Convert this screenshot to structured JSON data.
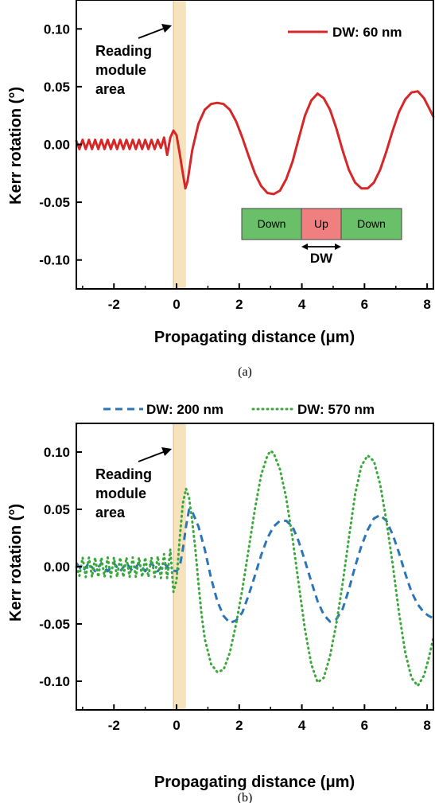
{
  "chart_data": [
    {
      "type": "line",
      "panel": "(a)",
      "caption": "(a)",
      "xlabel": "Propagating distance (μm)",
      "ylabel": "Kerr rotation (°)",
      "xlim": [
        -3.2,
        8.2
      ],
      "ylim": [
        -0.125,
        0.125
      ],
      "xticks": [
        "-2",
        "0",
        "2",
        "4",
        "6",
        "8"
      ],
      "yticks": [
        "0.10",
        "0.05",
        "0.00",
        "-0.05",
        "-0.10"
      ],
      "legend_position": "top-right",
      "highlight_region": [
        -0.1,
        0.3
      ],
      "highlight_color": "#f5deb3",
      "annotation_lines": [
        "Reading",
        "module",
        "area"
      ],
      "inset": {
        "segments": [
          "Down",
          "Up",
          "Down"
        ],
        "arrow_label": "DW",
        "colors": [
          "#6abf69",
          "#f08080",
          "#6abf69"
        ]
      },
      "series": [
        {
          "name": "DW: 60 nm",
          "color": "#d62728",
          "dash": "solid",
          "points": [
            [
              -3.2,
              0.003
            ],
            [
              -3.1,
              -0.004
            ],
            [
              -3.0,
              0.004
            ],
            [
              -2.9,
              -0.004
            ],
            [
              -2.8,
              0.004
            ],
            [
              -2.7,
              -0.004
            ],
            [
              -2.6,
              0.004
            ],
            [
              -2.5,
              -0.004
            ],
            [
              -2.4,
              0.004
            ],
            [
              -2.3,
              -0.004
            ],
            [
              -2.2,
              0.004
            ],
            [
              -2.1,
              -0.004
            ],
            [
              -2.0,
              0.004
            ],
            [
              -1.9,
              -0.004
            ],
            [
              -1.8,
              0.004
            ],
            [
              -1.7,
              -0.004
            ],
            [
              -1.6,
              0.004
            ],
            [
              -1.5,
              -0.004
            ],
            [
              -1.4,
              0.004
            ],
            [
              -1.3,
              -0.004
            ],
            [
              -1.2,
              0.004
            ],
            [
              -1.1,
              -0.004
            ],
            [
              -1.0,
              0.004
            ],
            [
              -0.9,
              -0.004
            ],
            [
              -0.8,
              0.004
            ],
            [
              -0.7,
              -0.004
            ],
            [
              -0.6,
              0.004
            ],
            [
              -0.5,
              -0.003
            ],
            [
              -0.4,
              0.006
            ],
            [
              -0.3,
              -0.009
            ],
            [
              -0.2,
              0.006
            ],
            [
              -0.1,
              0.012
            ],
            [
              0.0,
              0.008
            ],
            [
              0.1,
              -0.008
            ],
            [
              0.2,
              -0.025
            ],
            [
              0.28,
              -0.038
            ],
            [
              0.35,
              -0.032
            ],
            [
              0.5,
              -0.005
            ],
            [
              0.7,
              0.018
            ],
            [
              0.9,
              0.03
            ],
            [
              1.1,
              0.035
            ],
            [
              1.3,
              0.036
            ],
            [
              1.5,
              0.035
            ],
            [
              1.7,
              0.03
            ],
            [
              1.9,
              0.02
            ],
            [
              2.1,
              0.006
            ],
            [
              2.3,
              -0.01
            ],
            [
              2.5,
              -0.025
            ],
            [
              2.7,
              -0.036
            ],
            [
              2.9,
              -0.042
            ],
            [
              3.1,
              -0.043
            ],
            [
              3.3,
              -0.04
            ],
            [
              3.5,
              -0.03
            ],
            [
              3.7,
              -0.015
            ],
            [
              3.9,
              0.005
            ],
            [
              4.1,
              0.025
            ],
            [
              4.3,
              0.038
            ],
            [
              4.5,
              0.044
            ],
            [
              4.7,
              0.04
            ],
            [
              4.9,
              0.03
            ],
            [
              5.1,
              0.014
            ],
            [
              5.3,
              -0.005
            ],
            [
              5.5,
              -0.022
            ],
            [
              5.7,
              -0.033
            ],
            [
              5.9,
              -0.038
            ],
            [
              6.1,
              -0.038
            ],
            [
              6.3,
              -0.033
            ],
            [
              6.5,
              -0.022
            ],
            [
              6.7,
              -0.006
            ],
            [
              6.9,
              0.012
            ],
            [
              7.1,
              0.028
            ],
            [
              7.3,
              0.039
            ],
            [
              7.5,
              0.045
            ],
            [
              7.7,
              0.046
            ],
            [
              7.9,
              0.04
            ],
            [
              8.05,
              0.032
            ],
            [
              8.2,
              0.024
            ]
          ]
        }
      ]
    },
    {
      "type": "line",
      "panel": "(b)",
      "caption": "(b)",
      "xlabel": "Propagating distance (μm)",
      "ylabel": "Kerr rotation (°)",
      "xlim": [
        -3.2,
        8.2
      ],
      "ylim": [
        -0.125,
        0.125
      ],
      "xticks": [
        "-2",
        "0",
        "2",
        "4",
        "6",
        "8"
      ],
      "yticks": [
        "0.10",
        "0.05",
        "0.00",
        "-0.05",
        "-0.10"
      ],
      "legend_position": "top",
      "highlight_region": [
        -0.1,
        0.3
      ],
      "highlight_color": "#f5deb3",
      "annotation_lines": [
        "Reading",
        "module",
        "area"
      ],
      "series": [
        {
          "name": "DW: 200 nm",
          "color": "#2e75b6",
          "dash": "dashed",
          "points": [
            [
              -3.2,
              0.003
            ],
            [
              -3.0,
              -0.004
            ],
            [
              -2.8,
              0.003
            ],
            [
              -2.6,
              -0.004
            ],
            [
              -2.4,
              0.003
            ],
            [
              -2.2,
              -0.004
            ],
            [
              -2.0,
              0.003
            ],
            [
              -1.8,
              -0.004
            ],
            [
              -1.6,
              0.003
            ],
            [
              -1.4,
              -0.004
            ],
            [
              -1.2,
              0.003
            ],
            [
              -1.0,
              -0.004
            ],
            [
              -0.8,
              0.003
            ],
            [
              -0.6,
              -0.004
            ],
            [
              -0.4,
              0.003
            ],
            [
              -0.2,
              -0.003
            ],
            [
              0.0,
              -0.004
            ],
            [
              0.1,
              0.0
            ],
            [
              0.2,
              0.015
            ],
            [
              0.3,
              0.035
            ],
            [
              0.4,
              0.05
            ],
            [
              0.5,
              0.048
            ],
            [
              0.7,
              0.035
            ],
            [
              0.9,
              0.015
            ],
            [
              1.1,
              -0.01
            ],
            [
              1.3,
              -0.03
            ],
            [
              1.5,
              -0.043
            ],
            [
              1.7,
              -0.049
            ],
            [
              1.9,
              -0.047
            ],
            [
              2.1,
              -0.04
            ],
            [
              2.3,
              -0.025
            ],
            [
              2.5,
              -0.008
            ],
            [
              2.7,
              0.01
            ],
            [
              2.9,
              0.025
            ],
            [
              3.1,
              0.035
            ],
            [
              3.3,
              0.04
            ],
            [
              3.5,
              0.04
            ],
            [
              3.7,
              0.035
            ],
            [
              3.9,
              0.022
            ],
            [
              4.1,
              0.005
            ],
            [
              4.3,
              -0.013
            ],
            [
              4.5,
              -0.03
            ],
            [
              4.7,
              -0.042
            ],
            [
              4.9,
              -0.048
            ],
            [
              5.1,
              -0.046
            ],
            [
              5.3,
              -0.037
            ],
            [
              5.5,
              -0.02
            ],
            [
              5.7,
              0.0
            ],
            [
              5.9,
              0.018
            ],
            [
              6.1,
              0.032
            ],
            [
              6.3,
              0.042
            ],
            [
              6.5,
              0.045
            ],
            [
              6.7,
              0.04
            ],
            [
              6.9,
              0.028
            ],
            [
              7.1,
              0.012
            ],
            [
              7.3,
              -0.006
            ],
            [
              7.5,
              -0.022
            ],
            [
              7.7,
              -0.033
            ],
            [
              7.9,
              -0.04
            ],
            [
              8.05,
              -0.043
            ],
            [
              8.2,
              -0.045
            ]
          ]
        },
        {
          "name": "DW: 570 nm",
          "color": "#3aa83a",
          "dash": "dotted",
          "points": [
            [
              -3.2,
              0.0
            ],
            [
              -3.1,
              -0.008
            ],
            [
              -3.0,
              0.008
            ],
            [
              -2.9,
              -0.009
            ],
            [
              -2.8,
              0.008
            ],
            [
              -2.7,
              -0.009
            ],
            [
              -2.6,
              0.008
            ],
            [
              -2.5,
              -0.009
            ],
            [
              -2.4,
              0.008
            ],
            [
              -2.3,
              -0.009
            ],
            [
              -2.2,
              0.008
            ],
            [
              -2.1,
              -0.009
            ],
            [
              -2.0,
              0.008
            ],
            [
              -1.9,
              -0.009
            ],
            [
              -1.8,
              0.008
            ],
            [
              -1.7,
              -0.009
            ],
            [
              -1.6,
              0.008
            ],
            [
              -1.5,
              -0.009
            ],
            [
              -1.4,
              0.008
            ],
            [
              -1.3,
              -0.009
            ],
            [
              -1.2,
              0.008
            ],
            [
              -1.1,
              -0.009
            ],
            [
              -1.0,
              0.008
            ],
            [
              -0.9,
              -0.009
            ],
            [
              -0.8,
              0.008
            ],
            [
              -0.7,
              -0.009
            ],
            [
              -0.6,
              0.009
            ],
            [
              -0.5,
              -0.01
            ],
            [
              -0.4,
              0.011
            ],
            [
              -0.3,
              -0.01
            ],
            [
              -0.2,
              0.015
            ],
            [
              -0.1,
              -0.022
            ],
            [
              0.0,
              -0.012
            ],
            [
              0.1,
              0.025
            ],
            [
              0.2,
              0.055
            ],
            [
              0.3,
              0.068
            ],
            [
              0.4,
              0.06
            ],
            [
              0.5,
              0.04
            ],
            [
              0.6,
              0.015
            ],
            [
              0.7,
              -0.015
            ],
            [
              0.8,
              -0.042
            ],
            [
              0.9,
              -0.063
            ],
            [
              1.1,
              -0.085
            ],
            [
              1.3,
              -0.092
            ],
            [
              1.5,
              -0.09
            ],
            [
              1.7,
              -0.075
            ],
            [
              1.9,
              -0.05
            ],
            [
              2.1,
              -0.02
            ],
            [
              2.3,
              0.015
            ],
            [
              2.5,
              0.05
            ],
            [
              2.7,
              0.08
            ],
            [
              2.9,
              0.097
            ],
            [
              3.0,
              0.101
            ],
            [
              3.1,
              0.099
            ],
            [
              3.3,
              0.085
            ],
            [
              3.5,
              0.06
            ],
            [
              3.7,
              0.025
            ],
            [
              3.9,
              -0.015
            ],
            [
              4.1,
              -0.055
            ],
            [
              4.3,
              -0.085
            ],
            [
              4.5,
              -0.101
            ],
            [
              4.7,
              -0.097
            ],
            [
              4.9,
              -0.078
            ],
            [
              5.1,
              -0.05
            ],
            [
              5.3,
              -0.015
            ],
            [
              5.5,
              0.025
            ],
            [
              5.7,
              0.063
            ],
            [
              5.9,
              0.088
            ],
            [
              6.1,
              0.097
            ],
            [
              6.3,
              0.092
            ],
            [
              6.5,
              0.072
            ],
            [
              6.7,
              0.04
            ],
            [
              6.9,
              0.002
            ],
            [
              7.1,
              -0.04
            ],
            [
              7.3,
              -0.075
            ],
            [
              7.5,
              -0.097
            ],
            [
              7.7,
              -0.104
            ],
            [
              7.9,
              -0.095
            ],
            [
              8.05,
              -0.08
            ],
            [
              8.2,
              -0.062
            ]
          ]
        }
      ]
    }
  ]
}
